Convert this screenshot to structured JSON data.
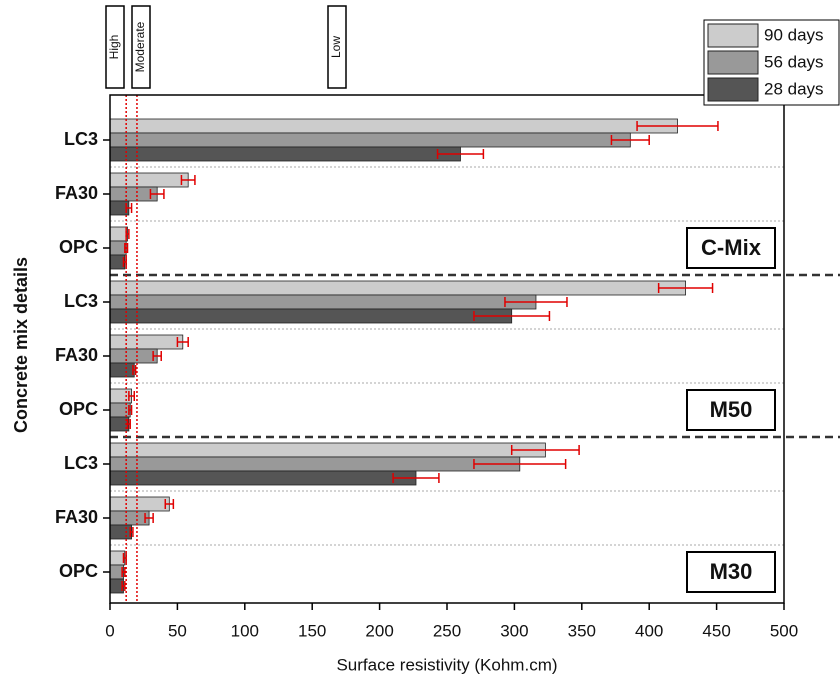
{
  "chart_data": {
    "type": "bar",
    "orientation": "horizontal",
    "xlabel": "Surface resistivity (Kohm.cm)",
    "ylabel": "Concrete mix details",
    "xlim": [
      0,
      500
    ],
    "xticks": [
      0,
      50,
      100,
      150,
      200,
      250,
      300,
      350,
      400,
      450,
      500
    ],
    "categories": [
      "LC3",
      "FA30",
      "OPC",
      "LC3",
      "FA30",
      "OPC",
      "LC3",
      "FA30",
      "OPC"
    ],
    "groups": [
      "C-Mix",
      "M50",
      "M30"
    ],
    "zones": [
      "High",
      "Moderate",
      "Low"
    ],
    "reference_lines": [
      12,
      20
    ],
    "reference_color": "#e00000",
    "error_color": "#e00000",
    "series": [
      {
        "name": "90 days",
        "color": "#cccccc",
        "values": [
          421,
          58,
          13,
          427,
          54,
          16,
          323,
          44,
          11
        ],
        "errors": [
          30,
          5,
          1,
          20,
          4,
          2,
          25,
          3,
          1
        ]
      },
      {
        "name": "56 days",
        "color": "#999999",
        "values": [
          386,
          35,
          12,
          316,
          35,
          15,
          304,
          29,
          10
        ],
        "errors": [
          14,
          5,
          1,
          23,
          3,
          1,
          34,
          3,
          1
        ]
      },
      {
        "name": "28 days",
        "color": "#555555",
        "values": [
          260,
          14,
          11,
          298,
          18,
          14,
          227,
          16,
          10
        ],
        "errors": [
          17,
          2,
          1,
          28,
          1,
          1,
          17,
          1,
          1
        ]
      }
    ]
  }
}
